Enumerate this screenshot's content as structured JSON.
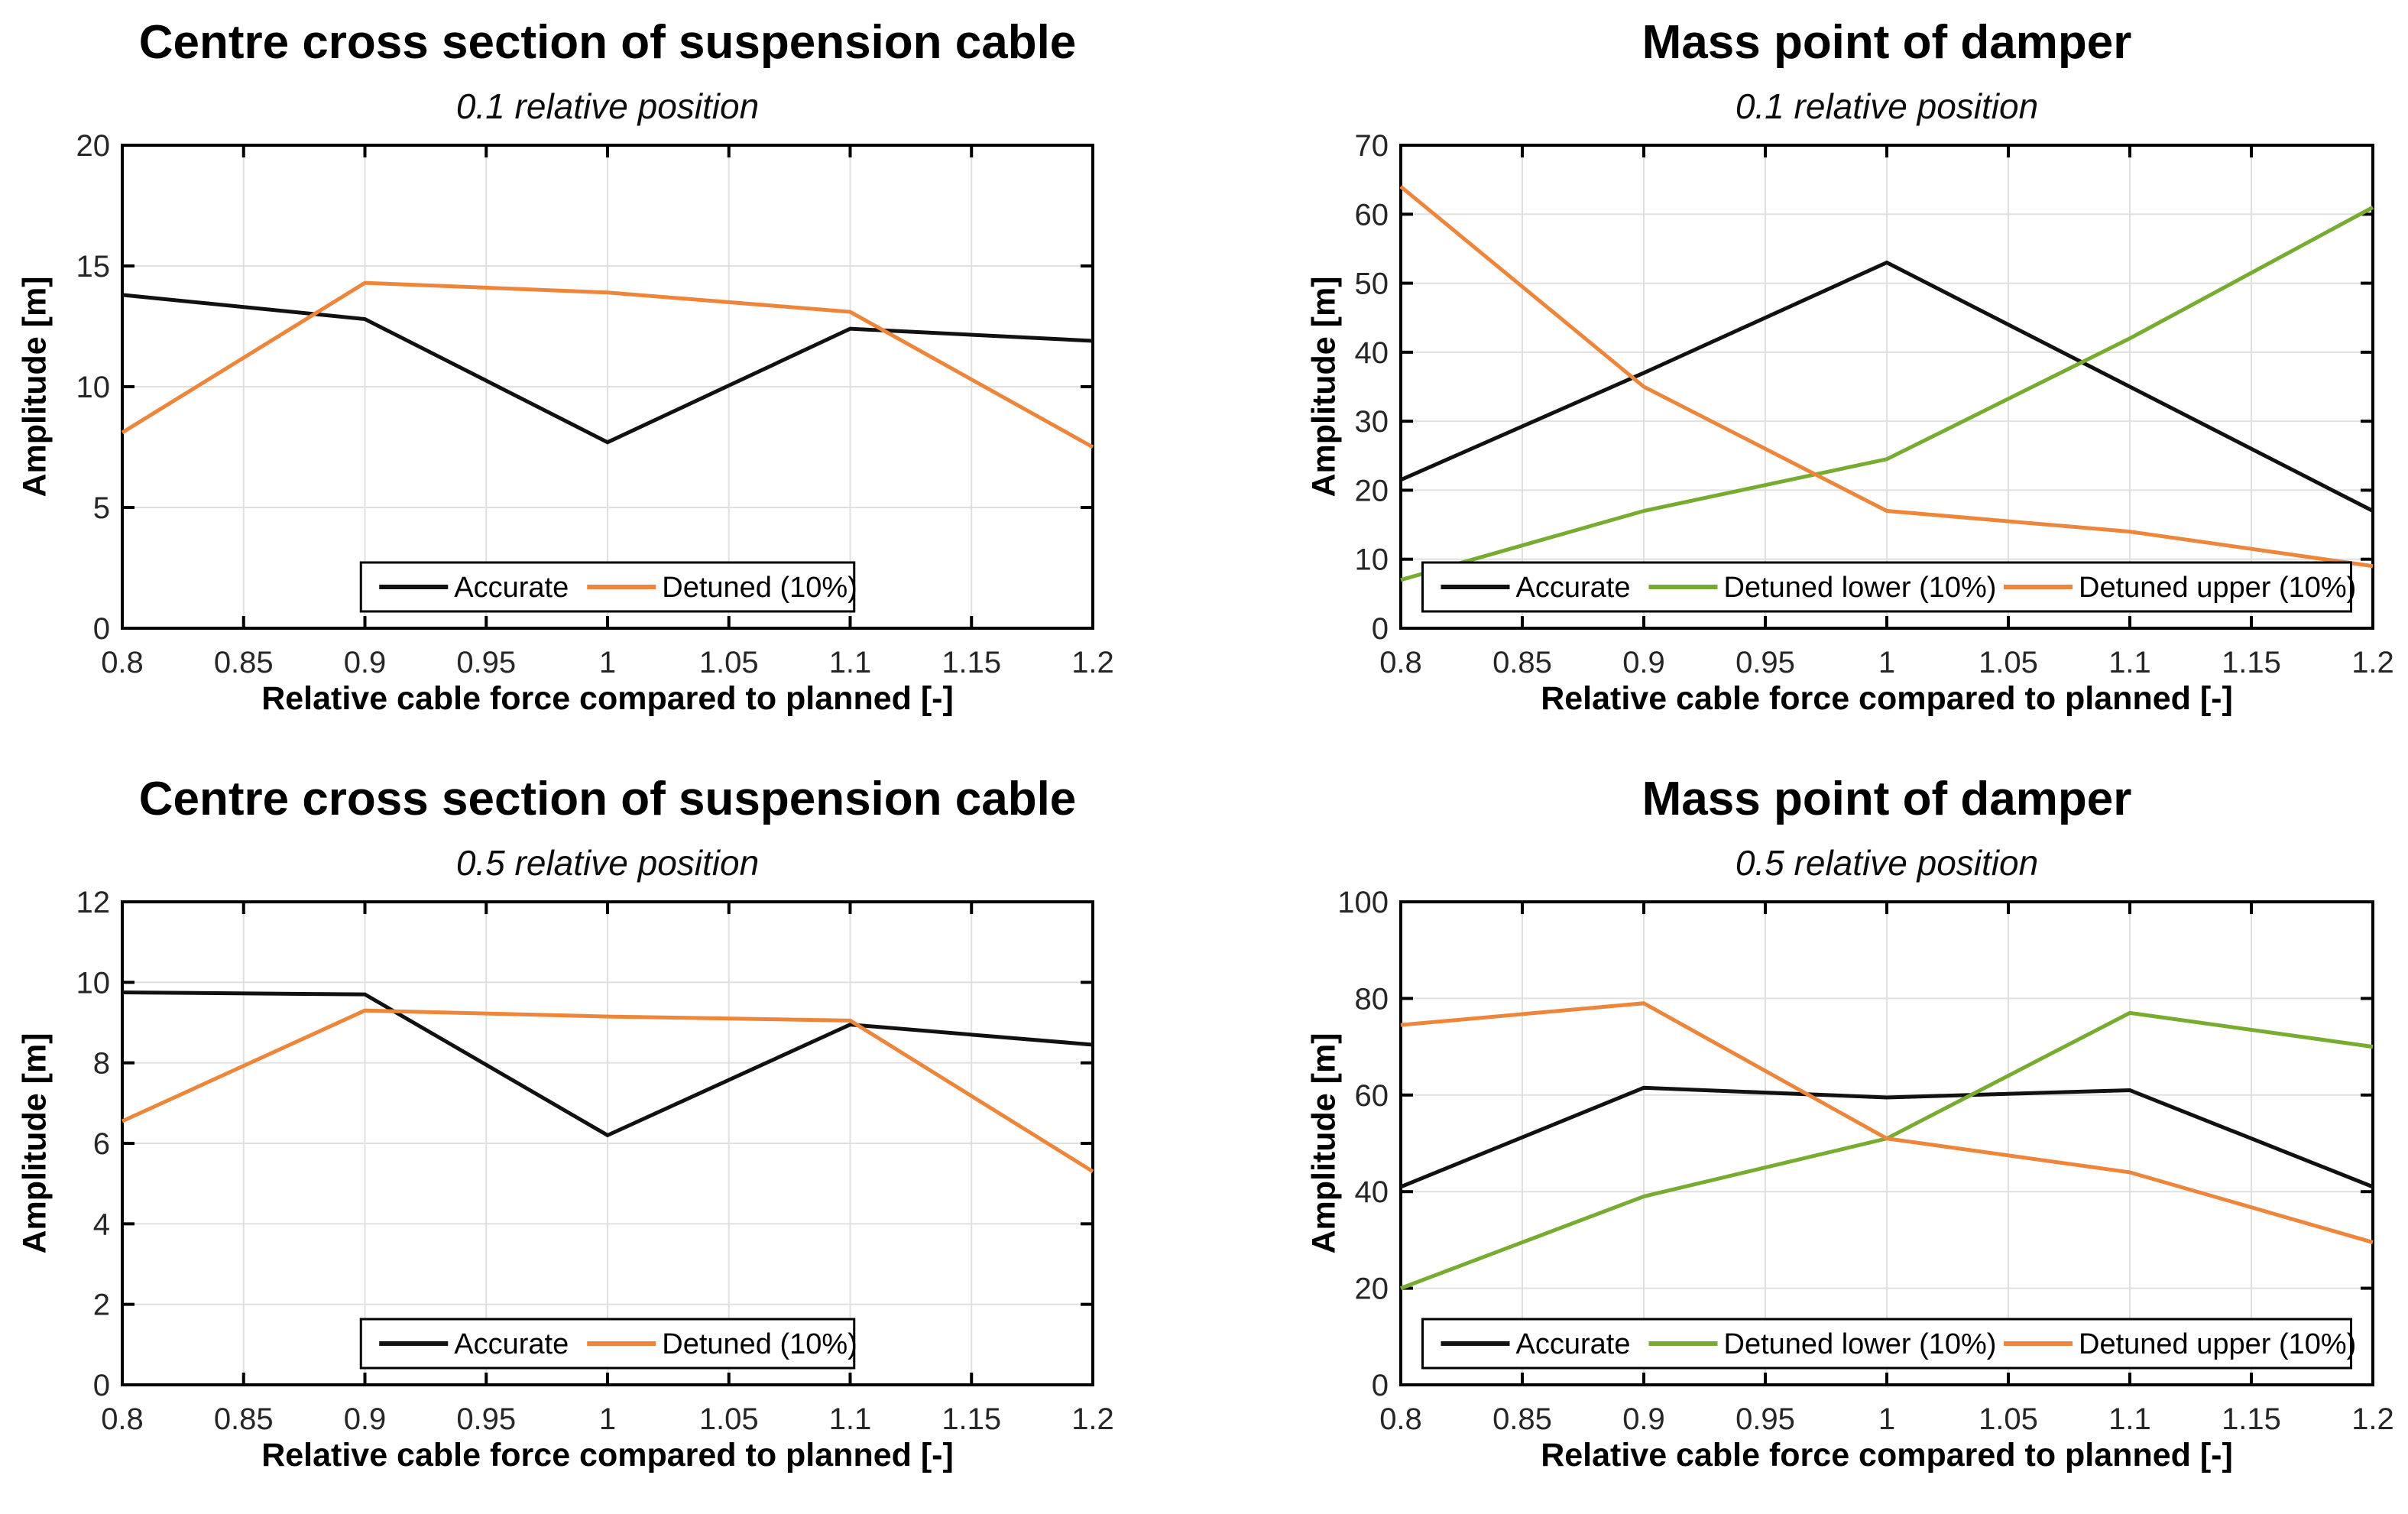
{
  "figure": {
    "background_color": "#FFFFFF",
    "axis_color": "#000000",
    "tick_label_color": "#262626",
    "grid_color": "#E0E0E0",
    "legend_border_color": "#000000",
    "legend_background": "#FFFFFF"
  },
  "chart_data": [
    {
      "id": "top-left",
      "type": "line",
      "title": "Centre cross section of suspension cable",
      "subtitle": "0.1 relative position",
      "xlabel": "Relative cable force compared to planned [-]",
      "ylabel": "Amplitude [m]",
      "x": [
        0.8,
        0.9,
        1,
        1.1,
        1.2
      ],
      "xlim": [
        0.8,
        1.2
      ],
      "ylim": [
        0,
        20
      ],
      "xticks": [
        "0.8",
        "0.85",
        "0.9",
        "0.95",
        "1",
        "1.05",
        "1.1",
        "1.15",
        "1.2"
      ],
      "yticks": [
        0,
        5,
        10,
        15,
        20
      ],
      "grid": true,
      "legend_position": "south-inside",
      "series": [
        {
          "name": "Accurate",
          "color": "#111111",
          "values": [
            13.8,
            12.8,
            7.7,
            12.4,
            11.9
          ]
        },
        {
          "name": "Detuned (10%)",
          "color": "#ED863B",
          "values": [
            8.1,
            14.3,
            13.9,
            13.1,
            7.5
          ]
        }
      ]
    },
    {
      "id": "top-right",
      "type": "line",
      "title": "Mass point of damper",
      "subtitle": "0.1 relative position",
      "xlabel": "Relative cable force compared to planned [-]",
      "ylabel": "Amplitude [m]",
      "x": [
        0.8,
        0.9,
        1,
        1.1,
        1.2
      ],
      "xlim": [
        0.8,
        1.2
      ],
      "ylim": [
        0,
        70
      ],
      "xticks": [
        "0.8",
        "0.85",
        "0.9",
        "0.95",
        "1",
        "1.05",
        "1.1",
        "1.15",
        "1.2"
      ],
      "yticks": [
        0,
        10,
        20,
        30,
        40,
        50,
        60,
        70
      ],
      "grid": true,
      "legend_position": "south-inside",
      "series": [
        {
          "name": "Accurate",
          "color": "#111111",
          "values": [
            21.5,
            37,
            53,
            35,
            17
          ]
        },
        {
          "name": "Detuned lower (10%)",
          "color": "#77AC30",
          "values": [
            7,
            17,
            24.5,
            42,
            61
          ]
        },
        {
          "name": "Detuned upper (10%)",
          "color": "#ED863B",
          "values": [
            64,
            35,
            17,
            14,
            9
          ]
        }
      ]
    },
    {
      "id": "bottom-left",
      "type": "line",
      "title": "Centre cross section of suspension cable",
      "subtitle": "0.5 relative position",
      "xlabel": "Relative cable force compared to planned [-]",
      "ylabel": "Amplitude [m]",
      "x": [
        0.8,
        0.9,
        1,
        1.1,
        1.2
      ],
      "xlim": [
        0.8,
        1.2
      ],
      "ylim": [
        0,
        12
      ],
      "xticks": [
        "0.8",
        "0.85",
        "0.9",
        "0.95",
        "1",
        "1.05",
        "1.1",
        "1.15",
        "1.2"
      ],
      "yticks": [
        0,
        2,
        4,
        6,
        8,
        10,
        12
      ],
      "grid": true,
      "legend_position": "south-inside",
      "series": [
        {
          "name": "Accurate",
          "color": "#111111",
          "values": [
            9.75,
            9.7,
            6.2,
            8.95,
            8.45
          ]
        },
        {
          "name": "Detuned (10%)",
          "color": "#ED863B",
          "values": [
            6.55,
            9.3,
            9.15,
            9.05,
            5.3
          ]
        }
      ]
    },
    {
      "id": "bottom-right",
      "type": "line",
      "title": "Mass point of damper",
      "subtitle": "0.5 relative position",
      "xlabel": "Relative cable force compared to planned [-]",
      "ylabel": "Amplitude [m]",
      "x": [
        0.8,
        0.9,
        1,
        1.1,
        1.2
      ],
      "xlim": [
        0.8,
        1.2
      ],
      "ylim": [
        0,
        100
      ],
      "xticks": [
        "0.8",
        "0.85",
        "0.9",
        "0.95",
        "1",
        "1.05",
        "1.1",
        "1.15",
        "1.2"
      ],
      "yticks": [
        0,
        20,
        40,
        60,
        80,
        100
      ],
      "grid": true,
      "legend_position": "south-inside",
      "series": [
        {
          "name": "Accurate",
          "color": "#111111",
          "values": [
            41,
            61.5,
            59.5,
            61,
            41
          ]
        },
        {
          "name": "Detuned lower (10%)",
          "color": "#77AC30",
          "values": [
            20,
            39,
            51,
            77,
            70
          ]
        },
        {
          "name": "Detuned upper (10%)",
          "color": "#ED863B",
          "values": [
            74.5,
            79,
            51,
            44,
            29.5
          ]
        }
      ]
    }
  ]
}
